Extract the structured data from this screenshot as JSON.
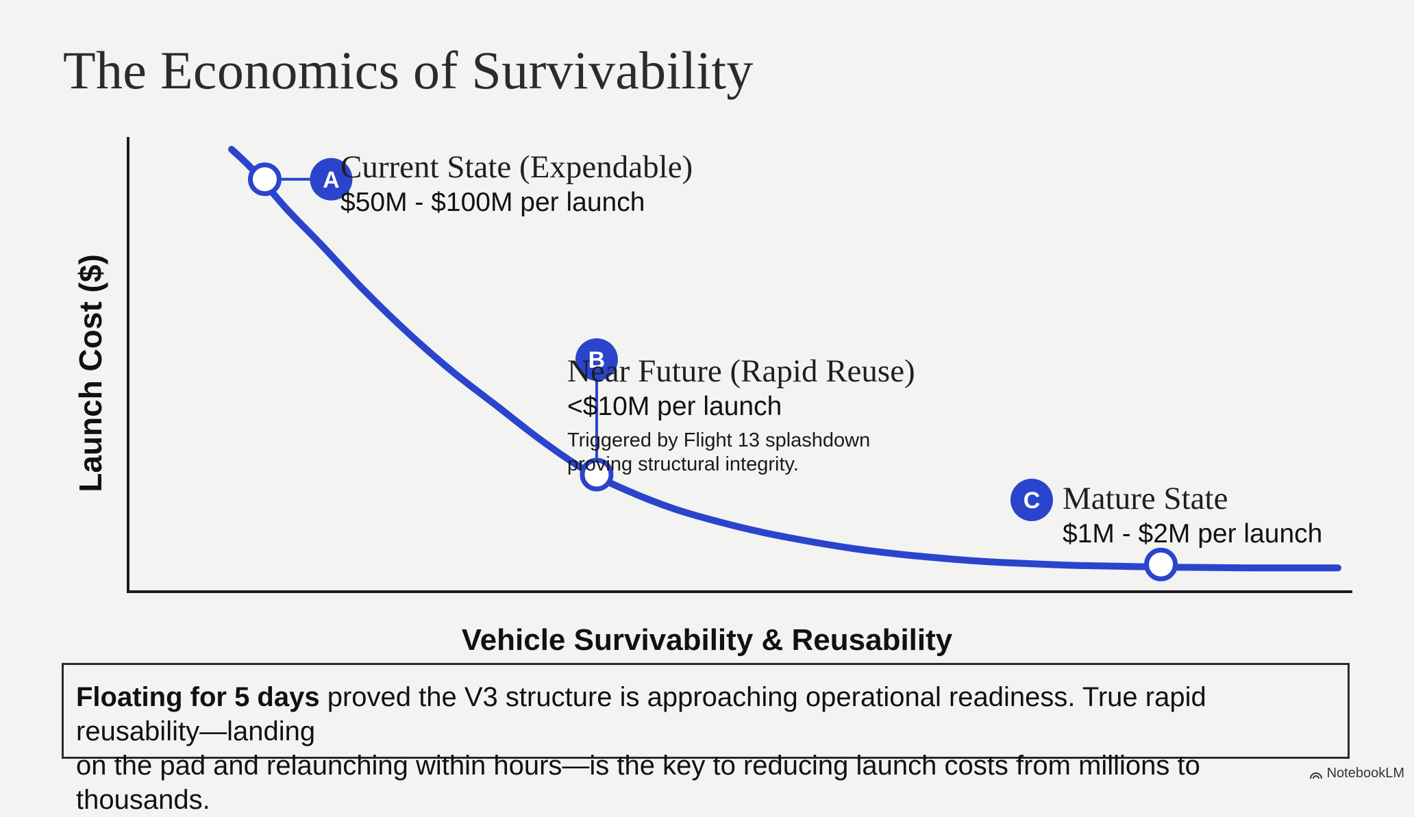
{
  "title": "The Economics of Survivability",
  "chart_data": {
    "type": "line",
    "xlabel": "Vehicle Survivability & Reusability",
    "ylabel": "Launch Cost ($)",
    "series": [
      {
        "x": [
          0.0,
          0.02,
          0.05,
          0.08,
          0.12,
          0.16,
          0.2,
          0.24,
          0.28,
          0.32,
          0.36,
          0.4,
          0.44,
          0.48,
          0.52,
          0.56,
          0.6,
          0.64,
          0.68,
          0.72,
          0.76,
          0.8,
          0.84,
          0.88,
          0.92,
          0.96,
          1.0
        ],
        "y": [
          1.0,
          0.95,
          0.86,
          0.78,
          0.67,
          0.57,
          0.48,
          0.4,
          0.32,
          0.25,
          0.2,
          0.16,
          0.13,
          0.105,
          0.085,
          0.068,
          0.055,
          0.045,
          0.037,
          0.032,
          0.028,
          0.026,
          0.024,
          0.023,
          0.022,
          0.022,
          0.022
        ]
      }
    ],
    "points": [
      {
        "id": "A",
        "x": 0.03,
        "y": 0.93,
        "label": "Current State (Expendable)",
        "value": "$50M - $100M per launch",
        "note": ""
      },
      {
        "id": "B",
        "x": 0.33,
        "y": 0.24,
        "label": "Near Future (Rapid Reuse)",
        "value": "<$10M per launch",
        "note": [
          "Triggered by Flight 13 splashdown",
          "proving structural integrity."
        ]
      },
      {
        "id": "C",
        "x": 0.84,
        "y": 0.03,
        "label": "Mature State",
        "value": "$1M - $2M per launch",
        "note": ""
      }
    ],
    "grid": false,
    "colors": {
      "curve": "#2a44cc",
      "axis": "#1a1a1a",
      "marker_fill": "#ffffff"
    }
  },
  "footer": {
    "bold": "Floating for 5 days",
    "rest_line1": " proved the V3 structure is approaching operational readiness. True rapid reusability—landing",
    "line2": "on the pad and relaunching within hours—is the key to reducing launch costs from millions to thousands."
  },
  "brand": "NotebookLM"
}
